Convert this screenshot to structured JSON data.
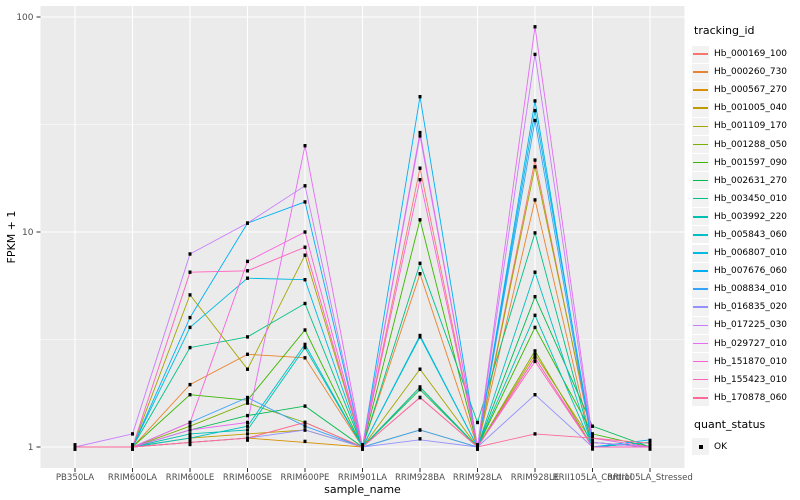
{
  "figure": {
    "xlabel": "sample_name",
    "ylabel": "FPKM + 1"
  },
  "axes": {
    "y_tick_labels": [
      "1",
      "10",
      "100"
    ],
    "x_tick_labels": [
      "PB350LA",
      "RRIM600LA",
      "RRIM600LE",
      "RRIM600SE",
      "RRIM600PE",
      "RRIM901LA",
      "RRIM928BA",
      "RRIM928LA",
      "RRIM928LE",
      "RRII105LA_Control",
      "RRII105LA_Stressed"
    ]
  },
  "legend": {
    "tracking_title": "tracking_id",
    "quant_title": "quant_status",
    "quant_items": [
      {
        "label": "OK",
        "symbol": "black-square"
      }
    ]
  },
  "colors": {
    "panel_bg": "#EBEBEB",
    "grid": "#FFFFFF",
    "tick": "#333333",
    "tick_label": "#4D4D4D",
    "axis_title": "#000000",
    "point": "#000000",
    "legend_key_bg": "#F2F2F2"
  },
  "chart_data": {
    "type": "line",
    "title": "",
    "xlabel": "sample_name",
    "ylabel": "FPKM + 1",
    "y_scale": "log10",
    "y_ticks": [
      1,
      10,
      100
    ],
    "y_minor_ticks": [
      3.162,
      31.62
    ],
    "ylim": [
      0.8,
      112
    ],
    "grid": true,
    "legend_position": "right",
    "point_marker": "small-black-square",
    "quant_status": "OK",
    "categories": [
      "PB350LA",
      "RRIM600LA",
      "RRIM600LE",
      "RRIM600SE",
      "RRIM600PE",
      "RRIM901LA",
      "RRIM928BA",
      "RRIM928LA",
      "RRIM928LE",
      "RRII105LA_Control",
      "RRII105LA_Stressed"
    ],
    "series": [
      {
        "name": "Hb_000169_100",
        "color": "#F8766D",
        "values": [
          1,
          1,
          1.05,
          1.1,
          1.3,
          1,
          19.8,
          1,
          21.6,
          1.05,
          1
        ]
      },
      {
        "name": "Hb_000260_730",
        "color": "#EA8331",
        "values": [
          1,
          1,
          1.95,
          2.7,
          2.6,
          1,
          6.4,
          1,
          14.1,
          1,
          1
        ]
      },
      {
        "name": "Hb_000567_270",
        "color": "#D89000",
        "values": [
          1,
          1,
          1.05,
          1.1,
          1.05,
          1,
          1.9,
          1,
          2.6,
          1,
          1.05
        ]
      },
      {
        "name": "Hb_001005_040",
        "color": "#C09B00",
        "values": [
          1,
          1,
          1.1,
          1.15,
          1.2,
          1,
          1.2,
          1,
          2.7,
          1.05,
          1
        ]
      },
      {
        "name": "Hb_001109_170",
        "color": "#A3A500",
        "values": [
          1,
          1,
          5.1,
          2.3,
          7.8,
          1,
          2.3,
          1,
          20.1,
          1.1,
          1
        ]
      },
      {
        "name": "Hb_001288_050",
        "color": "#7CAE00",
        "values": [
          1,
          1,
          1.25,
          1.6,
          1.3,
          1,
          1.9,
          1,
          2.8,
          1,
          1
        ]
      },
      {
        "name": "Hb_001597_090",
        "color": "#39B600",
        "values": [
          1,
          1,
          1.75,
          1.65,
          3.5,
          1,
          11.4,
          1,
          3.6,
          1.15,
          1
        ]
      },
      {
        "name": "Hb_002631_270",
        "color": "#00BB4E",
        "values": [
          1,
          1,
          1.2,
          1.4,
          1.55,
          1,
          1.85,
          1,
          5,
          1.25,
          1
        ]
      },
      {
        "name": "Hb_003450_010",
        "color": "#00C087",
        "values": [
          1,
          1,
          2.9,
          3.25,
          4.65,
          1,
          7.15,
          1.3,
          9.9,
          1,
          1
        ]
      },
      {
        "name": "Hb_003992_220",
        "color": "#00C0B2",
        "values": [
          1,
          1,
          1.15,
          1.2,
          2.9,
          1,
          1.9,
          1,
          4.1,
          1,
          1.05
        ]
      },
      {
        "name": "Hb_005843_060",
        "color": "#00BFC4",
        "values": [
          1,
          1,
          1.1,
          1.25,
          3,
          1,
          3.25,
          1,
          6.5,
          1,
          1.05
        ]
      },
      {
        "name": "Hb_006807_010",
        "color": "#00BAE0",
        "values": [
          1,
          1,
          3.6,
          6.1,
          6,
          1,
          3.3,
          1,
          36.7,
          1.05,
          1
        ]
      },
      {
        "name": "Hb_007676_060",
        "color": "#00B0F6",
        "values": [
          1,
          1,
          4,
          11,
          13.8,
          1,
          42.6,
          1,
          40.7,
          1,
          1.08
        ]
      },
      {
        "name": "Hb_008834_010",
        "color": "#35A2FF",
        "values": [
          1,
          1,
          1.3,
          1.7,
          1.25,
          1,
          1.2,
          1,
          33,
          1,
          1
        ]
      },
      {
        "name": "Hb_016835_020",
        "color": "#9590FF",
        "values": [
          1,
          1,
          1.05,
          1.1,
          1.2,
          1,
          1.08,
          1,
          1.75,
          1,
          1
        ]
      },
      {
        "name": "Hb_017225_030",
        "color": "#C77CFF",
        "values": [
          1,
          1.15,
          7.9,
          11,
          16.4,
          1,
          28,
          1,
          67,
          1.05,
          1
        ]
      },
      {
        "name": "Hb_029727_010",
        "color": "#E76BF3",
        "values": [
          1,
          1,
          1.2,
          1.3,
          25.2,
          1,
          29,
          1,
          90,
          1.1,
          1
        ]
      },
      {
        "name": "Hb_151870_010",
        "color": "#FA62DB",
        "values": [
          1,
          1,
          1.3,
          7.3,
          10,
          1,
          17.5,
          1,
          2.6,
          1,
          1
        ]
      },
      {
        "name": "Hb_155423_010",
        "color": "#FF62BC",
        "values": [
          1,
          1,
          6.5,
          6.6,
          8.5,
          1,
          1.7,
          1,
          2.5,
          1,
          1
        ]
      },
      {
        "name": "Hb_170878_060",
        "color": "#FF6A98",
        "values": [
          1,
          1,
          1.05,
          1.1,
          1.3,
          1,
          1.7,
          1,
          1.15,
          1.1,
          1.04
        ]
      }
    ]
  }
}
